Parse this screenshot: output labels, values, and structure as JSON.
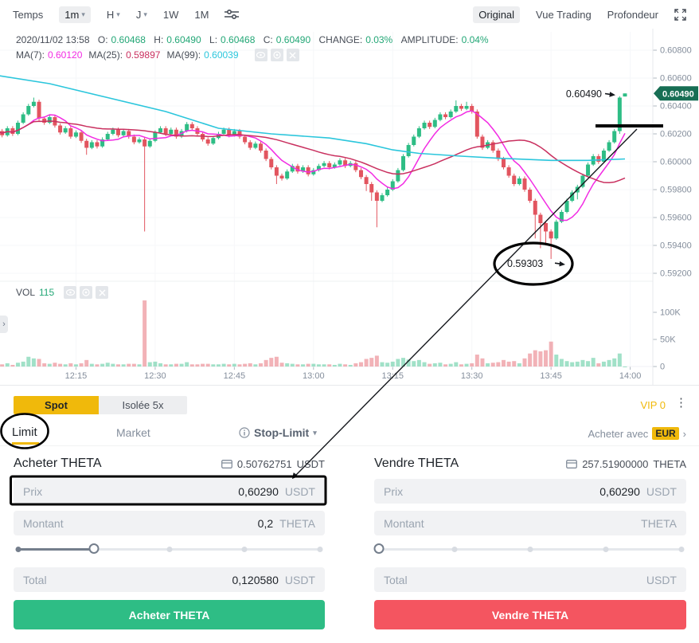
{
  "toolbar": {
    "temps_label": "Temps",
    "intervals": [
      {
        "label": "1m",
        "selected": true,
        "has_caret": true
      },
      {
        "label": "H",
        "selected": false,
        "has_caret": true
      },
      {
        "label": "J",
        "selected": false,
        "has_caret": true
      },
      {
        "label": "1W",
        "selected": false,
        "has_caret": false
      },
      {
        "label": "1M",
        "selected": false,
        "has_caret": false
      }
    ],
    "views": [
      {
        "label": "Original",
        "selected": true
      },
      {
        "label": "Vue Trading",
        "selected": false
      },
      {
        "label": "Profondeur",
        "selected": false
      }
    ]
  },
  "icons": {
    "caret": "▾",
    "chevron_right": "›",
    "dots": "⋮"
  },
  "ohlc": {
    "date": "2020/11/02 13:58",
    "o_label": "O:",
    "o": "0.60468",
    "h_label": "H:",
    "h": "0.60490",
    "l_label": "L:",
    "l": "0.60468",
    "c_label": "C:",
    "c": "0.60490",
    "change_label": "CHANGE:",
    "change": "0.03%",
    "amplitude_label": "AMPLITUDE:",
    "amplitude": "0.04%"
  },
  "ma": {
    "ma7_label": "MA(7):",
    "ma7_value": "0.60120",
    "ma7_color": "#F22BE3",
    "ma25_label": "MA(25):",
    "ma25_value": "0.59897",
    "ma25_color": "#C9305F",
    "ma99_label": "MA(99):",
    "ma99_value": "0.60039",
    "ma99_color": "#2BC6DC"
  },
  "vol": {
    "label": "VOL",
    "value": "115"
  },
  "chart_data": {
    "type": "candlestick",
    "interval": "1m",
    "quote": "USDT",
    "last_price": 0.6049,
    "last_price_label": "0.60490",
    "colors": {
      "up": "#2EBD85",
      "down": "#E2555F",
      "ma7": "#F22BE3",
      "ma25": "#C9305F",
      "ma99": "#2BC6DC",
      "tag": "#176E54"
    },
    "price_axis": {
      "ticks": [
        0.608,
        0.606,
        0.604,
        0.602,
        0.6,
        0.598,
        0.596,
        0.594,
        0.592
      ]
    },
    "time_axis": {
      "ticks": [
        {
          "label": "12:15",
          "m": 15
        },
        {
          "label": "12:30",
          "m": 30
        },
        {
          "label": "12:45",
          "m": 45
        },
        {
          "label": "13:00",
          "m": 60
        },
        {
          "label": "13:15",
          "m": 75
        },
        {
          "label": "13:30",
          "m": 90
        },
        {
          "label": "13:45",
          "m": 105
        },
        {
          "label": "14:00",
          "m": 120
        }
      ]
    },
    "volume_axis": {
      "ticks": [
        {
          "label": "100K",
          "v": 100
        },
        {
          "label": "50K",
          "v": 50
        },
        {
          "label": "0",
          "v": 0
        }
      ]
    },
    "ma99_points": [
      [
        0,
        0.6062
      ],
      [
        10,
        0.6056
      ],
      [
        21,
        0.6046
      ],
      [
        32,
        0.6036
      ],
      [
        42,
        0.6024
      ],
      [
        52,
        0.602
      ],
      [
        63,
        0.6017
      ],
      [
        70,
        0.6013
      ],
      [
        75,
        0.60085
      ],
      [
        80,
        0.6006
      ],
      [
        88,
        0.6004
      ],
      [
        95,
        0.60025
      ],
      [
        105,
        0.6001
      ],
      [
        112,
        0.6001
      ],
      [
        119,
        0.6002
      ]
    ],
    "candles": [
      [
        0.6024,
        0.60255,
        0.602,
        0.6022,
        5
      ],
      [
        0.6022,
        0.60235,
        0.60175,
        0.6019,
        4
      ],
      [
        0.6019,
        0.60255,
        0.6018,
        0.6024,
        6
      ],
      [
        0.6024,
        0.60255,
        0.60185,
        0.602,
        3
      ],
      [
        0.602,
        0.60295,
        0.6019,
        0.6028,
        7
      ],
      [
        0.6028,
        0.60355,
        0.6027,
        0.6034,
        9
      ],
      [
        0.6034,
        0.60415,
        0.6033,
        0.604,
        18
      ],
      [
        0.604,
        0.6046,
        0.6039,
        0.6043,
        15
      ],
      [
        0.6043,
        0.60445,
        0.60295,
        0.6031,
        14
      ],
      [
        0.6031,
        0.60325,
        0.60265,
        0.6028,
        6
      ],
      [
        0.6028,
        0.60335,
        0.6027,
        0.6032,
        5
      ],
      [
        0.6032,
        0.60335,
        0.60245,
        0.6026,
        7
      ],
      [
        0.6026,
        0.60275,
        0.60195,
        0.6021,
        5
      ],
      [
        0.6021,
        0.60255,
        0.602,
        0.6024,
        4
      ],
      [
        0.6024,
        0.60255,
        0.60165,
        0.6018,
        6
      ],
      [
        0.6018,
        0.60225,
        0.6017,
        0.6021,
        4
      ],
      [
        0.6021,
        0.60225,
        0.60135,
        0.6015,
        6
      ],
      [
        0.6015,
        0.60165,
        0.6005,
        0.601,
        12
      ],
      [
        0.601,
        0.60155,
        0.6009,
        0.6014,
        5
      ],
      [
        0.6014,
        0.60155,
        0.60095,
        0.6011,
        4
      ],
      [
        0.6011,
        0.60175,
        0.601,
        0.6016,
        5
      ],
      [
        0.6016,
        0.60215,
        0.6015,
        0.602,
        7
      ],
      [
        0.602,
        0.60245,
        0.6019,
        0.6023,
        5
      ],
      [
        0.6023,
        0.60245,
        0.60175,
        0.6019,
        4
      ],
      [
        0.6019,
        0.60235,
        0.6018,
        0.6022,
        4
      ],
      [
        0.6022,
        0.60235,
        0.60165,
        0.6018,
        5
      ],
      [
        0.6018,
        0.60195,
        0.60125,
        0.6014,
        5
      ],
      [
        0.6014,
        0.60175,
        0.6013,
        0.6016,
        4
      ],
      [
        0.6016,
        0.60175,
        0.595,
        0.6011,
        122
      ],
      [
        0.6011,
        0.60165,
        0.601,
        0.6015,
        8
      ],
      [
        0.6015,
        0.60225,
        0.6014,
        0.6021,
        9
      ],
      [
        0.6021,
        0.60255,
        0.602,
        0.6024,
        6
      ],
      [
        0.6024,
        0.60255,
        0.60185,
        0.602,
        4
      ],
      [
        0.602,
        0.60245,
        0.6019,
        0.6023,
        4
      ],
      [
        0.6023,
        0.60245,
        0.60165,
        0.6018,
        5
      ],
      [
        0.6018,
        0.60235,
        0.6017,
        0.6022,
        5
      ],
      [
        0.6022,
        0.60285,
        0.6021,
        0.6027,
        8
      ],
      [
        0.6027,
        0.60285,
        0.60225,
        0.6024,
        4
      ],
      [
        0.6024,
        0.60255,
        0.60185,
        0.602,
        4
      ],
      [
        0.602,
        0.60215,
        0.60145,
        0.6016,
        5
      ],
      [
        0.6016,
        0.60175,
        0.60115,
        0.6013,
        5
      ],
      [
        0.6013,
        0.60185,
        0.6012,
        0.6017,
        4
      ],
      [
        0.6017,
        0.60215,
        0.6016,
        0.602,
        4
      ],
      [
        0.602,
        0.60245,
        0.6019,
        0.6023,
        5
      ],
      [
        0.6023,
        0.60245,
        0.60175,
        0.6019,
        4
      ],
      [
        0.6019,
        0.60235,
        0.6018,
        0.6022,
        5
      ],
      [
        0.6022,
        0.60235,
        0.60165,
        0.6018,
        4
      ],
      [
        0.6018,
        0.60195,
        0.60125,
        0.6014,
        5
      ],
      [
        0.6014,
        0.60155,
        0.60085,
        0.601,
        6
      ],
      [
        0.601,
        0.60145,
        0.6009,
        0.6013,
        4
      ],
      [
        0.6013,
        0.60145,
        0.60065,
        0.6008,
        6
      ],
      [
        0.6008,
        0.60095,
        0.60005,
        0.6002,
        12
      ],
      [
        0.6002,
        0.60035,
        0.59945,
        0.5996,
        16
      ],
      [
        0.5996,
        0.59975,
        0.5984,
        0.599,
        18
      ],
      [
        0.599,
        0.59915,
        0.59865,
        0.5988,
        7
      ],
      [
        0.5988,
        0.59945,
        0.5987,
        0.5993,
        6
      ],
      [
        0.5993,
        0.59985,
        0.5992,
        0.5997,
        5
      ],
      [
        0.5997,
        0.59985,
        0.59915,
        0.5993,
        4
      ],
      [
        0.5993,
        0.59975,
        0.5992,
        0.5996,
        4
      ],
      [
        0.5996,
        0.59975,
        0.59895,
        0.5991,
        5
      ],
      [
        0.5991,
        0.59955,
        0.599,
        0.5994,
        5
      ],
      [
        0.5994,
        0.59985,
        0.5993,
        0.5997,
        4
      ],
      [
        0.5997,
        0.60005,
        0.5996,
        0.5999,
        4
      ],
      [
        0.5999,
        0.60005,
        0.59945,
        0.5996,
        4
      ],
      [
        0.5996,
        0.59995,
        0.5995,
        0.5998,
        3
      ],
      [
        0.5998,
        0.60025,
        0.5997,
        0.6001,
        5
      ],
      [
        0.6001,
        0.60025,
        0.59955,
        0.5997,
        4
      ],
      [
        0.5997,
        0.60005,
        0.5996,
        0.5999,
        3
      ],
      [
        0.5999,
        0.60005,
        0.59925,
        0.5994,
        6
      ],
      [
        0.5994,
        0.59955,
        0.59875,
        0.5989,
        8
      ],
      [
        0.5989,
        0.59905,
        0.5979,
        0.5984,
        14
      ],
      [
        0.5984,
        0.59855,
        0.5972,
        0.5978,
        16
      ],
      [
        0.5978,
        0.59795,
        0.5953,
        0.5972,
        20
      ],
      [
        0.5972,
        0.59775,
        0.5971,
        0.5976,
        8
      ],
      [
        0.5976,
        0.59815,
        0.5975,
        0.598,
        7
      ],
      [
        0.598,
        0.59875,
        0.5979,
        0.5986,
        9
      ],
      [
        0.5986,
        0.59955,
        0.5985,
        0.5994,
        14
      ],
      [
        0.5994,
        0.60055,
        0.5993,
        0.6004,
        16
      ],
      [
        0.6004,
        0.60135,
        0.6003,
        0.6012,
        13
      ],
      [
        0.6012,
        0.60195,
        0.6011,
        0.6018,
        10
      ],
      [
        0.6018,
        0.60255,
        0.6017,
        0.6024,
        12
      ],
      [
        0.6024,
        0.60295,
        0.6023,
        0.6028,
        8
      ],
      [
        0.6028,
        0.60295,
        0.60235,
        0.6025,
        5
      ],
      [
        0.6025,
        0.60315,
        0.6024,
        0.603,
        6
      ],
      [
        0.603,
        0.60355,
        0.6029,
        0.6034,
        7
      ],
      [
        0.6034,
        0.60355,
        0.60305,
        0.6032,
        4
      ],
      [
        0.6032,
        0.60375,
        0.6031,
        0.6036,
        5
      ],
      [
        0.6036,
        0.6044,
        0.6035,
        0.604,
        8
      ],
      [
        0.604,
        0.60415,
        0.60365,
        0.6038,
        4
      ],
      [
        0.6038,
        0.6043,
        0.6037,
        0.604,
        5
      ],
      [
        0.604,
        0.60415,
        0.60345,
        0.6036,
        6
      ],
      [
        0.6036,
        0.60375,
        0.60165,
        0.6018,
        22
      ],
      [
        0.6018,
        0.60195,
        0.60085,
        0.601,
        15
      ],
      [
        0.601,
        0.60155,
        0.6009,
        0.6014,
        6
      ],
      [
        0.6014,
        0.60155,
        0.60065,
        0.6008,
        7
      ],
      [
        0.6008,
        0.60095,
        0.60005,
        0.6002,
        8
      ],
      [
        0.6002,
        0.60035,
        0.59945,
        0.5996,
        12
      ],
      [
        0.5996,
        0.59975,
        0.59885,
        0.599,
        9
      ],
      [
        0.599,
        0.59915,
        0.59825,
        0.5984,
        10
      ],
      [
        0.5984,
        0.59895,
        0.5983,
        0.5988,
        6
      ],
      [
        0.5988,
        0.59895,
        0.59785,
        0.598,
        15
      ],
      [
        0.598,
        0.59815,
        0.59705,
        0.5972,
        24
      ],
      [
        0.5972,
        0.59735,
        0.5945,
        0.5962,
        30
      ],
      [
        0.5962,
        0.59635,
        0.5938,
        0.5956,
        28
      ],
      [
        0.5956,
        0.59575,
        0.594,
        0.595,
        30
      ],
      [
        0.595,
        0.59515,
        0.59303,
        0.5945,
        46
      ],
      [
        0.5945,
        0.59585,
        0.5944,
        0.5957,
        22
      ],
      [
        0.5957,
        0.59655,
        0.5956,
        0.5964,
        14
      ],
      [
        0.5964,
        0.59735,
        0.5963,
        0.5972,
        10
      ],
      [
        0.5972,
        0.59795,
        0.5971,
        0.5978,
        8
      ],
      [
        0.5978,
        0.59835,
        0.5973,
        0.5982,
        9
      ],
      [
        0.5982,
        0.59915,
        0.5981,
        0.599,
        12
      ],
      [
        0.599,
        0.59995,
        0.5989,
        0.5998,
        10
      ],
      [
        0.5998,
        0.60055,
        0.5997,
        0.6004,
        16
      ],
      [
        0.6004,
        0.60055,
        0.59985,
        0.6,
        6
      ],
      [
        0.6,
        0.60095,
        0.5999,
        0.6008,
        9
      ],
      [
        0.6008,
        0.60155,
        0.6007,
        0.6014,
        12
      ],
      [
        0.6014,
        0.60235,
        0.6013,
        0.6022,
        15
      ],
      [
        0.6022,
        0.6047,
        0.602,
        0.6046,
        24
      ],
      [
        0.60468,
        0.6049,
        0.60468,
        0.6049,
        0.1
      ]
    ]
  },
  "annotations": {
    "high_callout": "0.60490",
    "low_callout": "0.59303"
  },
  "panel": {
    "tabs": {
      "spot": "Spot",
      "isolee": "Isolée 5x"
    },
    "vip": "VIP 0",
    "order_types": {
      "limit": "Limit",
      "market": "Market",
      "stop_limit": "Stop-Limit"
    },
    "buy_with_label": "Acheter avec",
    "buy_with_currency": "EUR",
    "buy": {
      "title": "Acheter THETA",
      "balance": "0.50762751",
      "balance_unit": "USDT",
      "price_label": "Prix",
      "price_value": "0,60290",
      "price_unit": "USDT",
      "amount_label": "Montant",
      "amount_value": "0,2",
      "amount_unit": "THETA",
      "total_label": "Total",
      "total_value": "0,120580",
      "total_unit": "USDT",
      "button": "Acheter THETA",
      "slider_percent": 25
    },
    "sell": {
      "title": "Vendre THETA",
      "balance": "257.51900000",
      "balance_unit": "THETA",
      "price_label": "Prix",
      "price_value": "0,60290",
      "price_unit": "USDT",
      "amount_label": "Montant",
      "amount_value": "",
      "amount_unit": "THETA",
      "total_label": "Total",
      "total_value": "",
      "total_unit": "USDT",
      "button": "Vendre THETA",
      "slider_percent": 0
    }
  }
}
